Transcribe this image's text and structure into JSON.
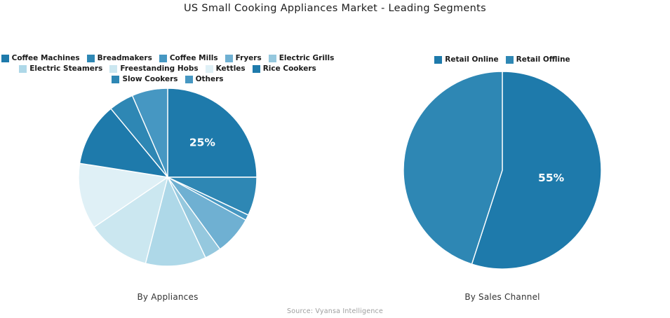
{
  "title": "US Small Cooking Appliances Market - Leading Segments",
  "source": "Source: Vyansa Intelligence",
  "palette": {
    "blue_1": "#1e7aab",
    "blue_2": "#2e87b4",
    "blue_3": "#4697c2",
    "blue_4": "#6fb0d2",
    "blue_5": "#95c8de",
    "blue_6": "#aed8e8",
    "blue_7": "#cbe7f0",
    "blue_8": "#dff0f6"
  },
  "chart_data": [
    {
      "id": "appliances",
      "type": "pie",
      "title": "By Appliances",
      "categories": [
        "Coffee Machines",
        "Breadmakers",
        "Coffee Mills",
        "Fryers",
        "Electric Grills",
        "Electric Steamers",
        "Freestanding Hobs",
        "Kettles",
        "Rice Cookers",
        "Slow Cookers",
        "Others"
      ],
      "values": [
        25,
        7,
        1,
        7,
        3,
        11,
        11.5,
        12,
        11.5,
        4.5,
        6.5
      ],
      "colors": [
        "#1e7aab",
        "#2e87b4",
        "#4697c2",
        "#6fb0d2",
        "#95c8de",
        "#aed8e8",
        "#cbe7f0",
        "#dff0f6",
        "#1e7aab",
        "#2e87b4",
        "#4697c2"
      ],
      "start_angle": 0,
      "direction": "clockwise",
      "legend_position": "top",
      "legend_rows": [
        [
          0,
          1,
          2,
          3,
          4
        ],
        [
          5,
          6,
          7,
          8
        ],
        [
          9,
          10
        ]
      ],
      "shown_labels": [
        {
          "category": "Coffee Machines",
          "text": "25%"
        }
      ],
      "label_radius": 0.55
    },
    {
      "id": "sales-channel",
      "type": "pie",
      "title": "By Sales Channel",
      "categories": [
        "Retail Online",
        "Retail Offline"
      ],
      "values": [
        55,
        45
      ],
      "colors": [
        "#1e7aab",
        "#2e87b4"
      ],
      "start_angle": 0,
      "direction": "clockwise",
      "legend_position": "top",
      "legend_rows": [
        [
          0,
          1
        ]
      ],
      "shown_labels": [
        {
          "category": "Retail Online",
          "text": "55%"
        }
      ],
      "label_radius": 0.5
    }
  ]
}
